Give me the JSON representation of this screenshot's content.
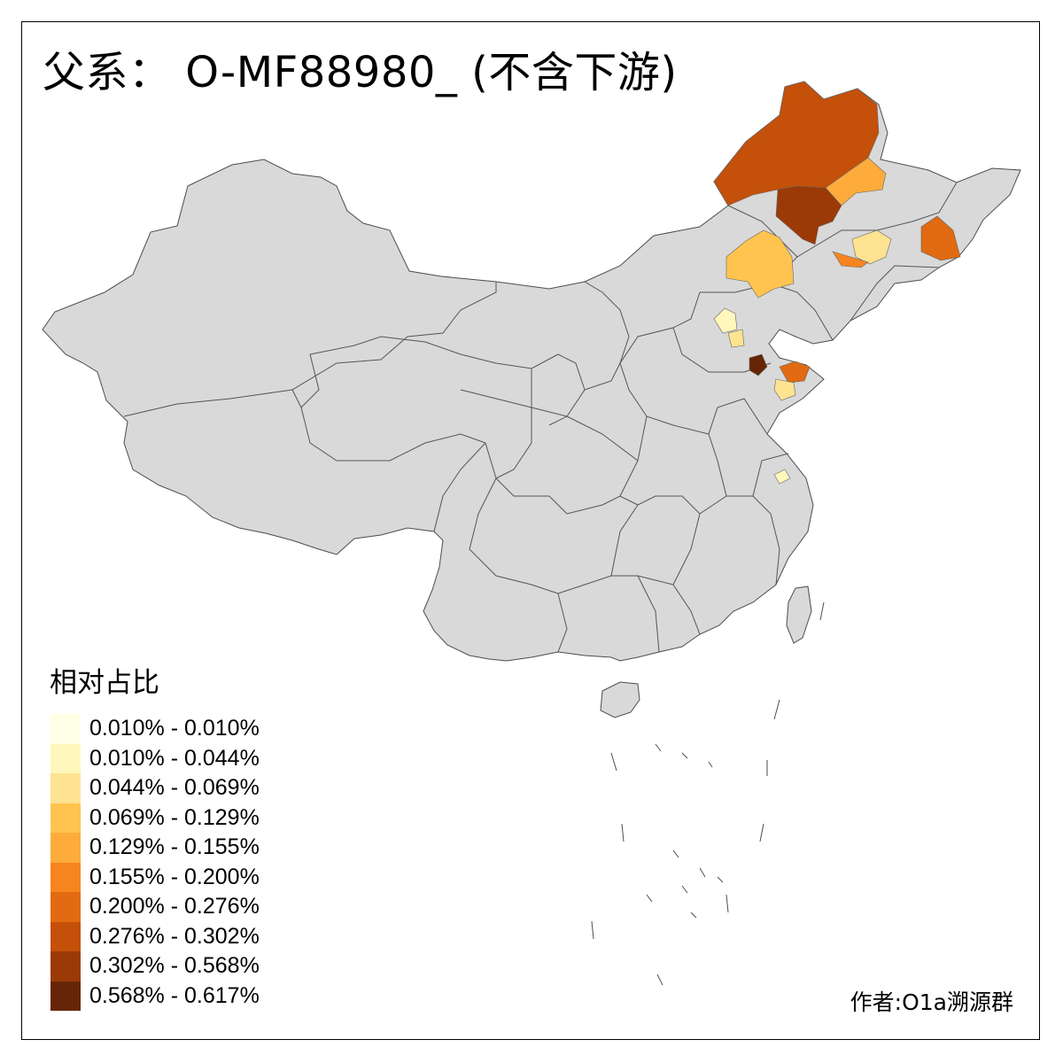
{
  "map": {
    "title": "父系： O-MF88980_ (不含下游)",
    "credit": "作者:O1a溯源群",
    "base_fill": "#d9d9d9",
    "border_color": "#4d4d4d"
  },
  "legend": {
    "title": "相对占比",
    "items": [
      {
        "label": "0.010% - 0.010%",
        "color": "#ffffe5"
      },
      {
        "label": "0.010% - 0.044%",
        "color": "#fff7bc"
      },
      {
        "label": "0.044% - 0.069%",
        "color": "#fee391"
      },
      {
        "label": "0.069% - 0.129%",
        "color": "#fec44f"
      },
      {
        "label": "0.129% - 0.155%",
        "color": "#fdac3b"
      },
      {
        "label": "0.155% - 0.200%",
        "color": "#f6851f"
      },
      {
        "label": "0.200% - 0.276%",
        "color": "#e16a12"
      },
      {
        "label": "0.276% - 0.302%",
        "color": "#c4500a"
      },
      {
        "label": "0.302% - 0.568%",
        "color": "#9b3a07"
      },
      {
        "label": "0.568% - 0.617%",
        "color": "#662506"
      }
    ]
  }
}
